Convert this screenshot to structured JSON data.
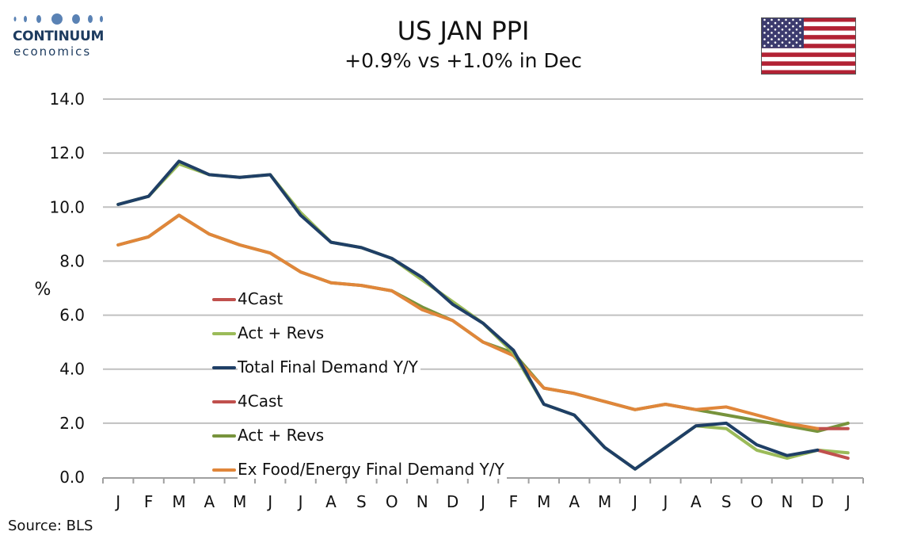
{
  "logo": {
    "top": "CONTINUUM",
    "bottom": "economics"
  },
  "header": {
    "title": "US JAN PPI",
    "subtitle": "+0.9% vs +1.0% in Dec"
  },
  "flag": {
    "icon": "us-flag-icon",
    "colors": {
      "red": "#b22234",
      "white": "#ffffff",
      "blue": "#3c3b6e"
    }
  },
  "source": "Source: BLS",
  "colors": {
    "total_actual": "#9bbb59",
    "total_final": "#1f3f66",
    "total_4cast": "#c0504d",
    "core_actual": "#77933c",
    "core_final": "#e0863a",
    "core_4cast": "#c0504d",
    "grid": "#c0c0c0",
    "axis": "#a0a0a0"
  },
  "chart_data": {
    "type": "line",
    "title": "US JAN PPI",
    "subtitle": "+0.9% vs +1.0% in Dec",
    "ylabel": "%",
    "xlabel": "",
    "ylim": [
      0,
      14
    ],
    "yticks": [
      "0.0",
      "2.0",
      "4.0",
      "6.0",
      "8.0",
      "10.0",
      "12.0",
      "14.0"
    ],
    "grid": true,
    "legend_position": "center-left",
    "categories": [
      "J",
      "F",
      "M",
      "A",
      "M",
      "J",
      "J",
      "A",
      "S",
      "O",
      "N",
      "D",
      "J",
      "F",
      "M",
      "A",
      "M",
      "J",
      "J",
      "A",
      "S",
      "O",
      "N",
      "D",
      "J"
    ],
    "series": [
      {
        "name": "4Cast",
        "key": "total_4cast",
        "values": [
          null,
          null,
          null,
          null,
          null,
          null,
          null,
          null,
          null,
          null,
          null,
          null,
          null,
          null,
          null,
          null,
          null,
          null,
          null,
          null,
          null,
          null,
          null,
          1.0,
          0.7
        ]
      },
      {
        "name": "Act + Revs",
        "key": "total_actual",
        "values": [
          10.1,
          10.4,
          11.6,
          11.2,
          11.1,
          11.2,
          9.8,
          8.7,
          8.5,
          8.1,
          7.3,
          6.5,
          5.7,
          4.6,
          2.7,
          2.3,
          1.1,
          0.3,
          1.1,
          1.9,
          1.8,
          1.0,
          0.7,
          1.0,
          0.9
        ]
      },
      {
        "name": "Total Final Demand Y/Y",
        "key": "total_final",
        "values": [
          10.1,
          10.4,
          11.7,
          11.2,
          11.1,
          11.2,
          9.7,
          8.7,
          8.5,
          8.1,
          7.4,
          6.4,
          5.7,
          4.7,
          2.7,
          2.3,
          1.1,
          0.3,
          1.1,
          1.9,
          2.0,
          1.2,
          0.8,
          1.0,
          null
        ]
      },
      {
        "name": "4Cast",
        "key": "core_4cast",
        "values": [
          null,
          null,
          null,
          null,
          null,
          null,
          null,
          null,
          null,
          null,
          null,
          null,
          null,
          null,
          null,
          null,
          null,
          null,
          null,
          null,
          null,
          null,
          null,
          1.8,
          1.8
        ]
      },
      {
        "name": "Act + Revs",
        "key": "core_actual",
        "values": [
          8.6,
          8.9,
          9.7,
          9.0,
          8.6,
          8.3,
          7.6,
          7.2,
          7.1,
          6.9,
          6.3,
          5.8,
          5.0,
          4.6,
          3.3,
          3.1,
          2.8,
          2.5,
          2.7,
          2.5,
          2.3,
          2.1,
          1.9,
          1.7,
          2.0
        ]
      },
      {
        "name": "Ex Food/Energy Final Demand Y/Y",
        "key": "core_final",
        "values": [
          8.6,
          8.9,
          9.7,
          9.0,
          8.6,
          8.3,
          7.6,
          7.2,
          7.1,
          6.9,
          6.2,
          5.8,
          5.0,
          4.5,
          3.3,
          3.1,
          2.8,
          2.5,
          2.7,
          2.5,
          2.6,
          2.3,
          2.0,
          1.8,
          null
        ]
      }
    ]
  }
}
